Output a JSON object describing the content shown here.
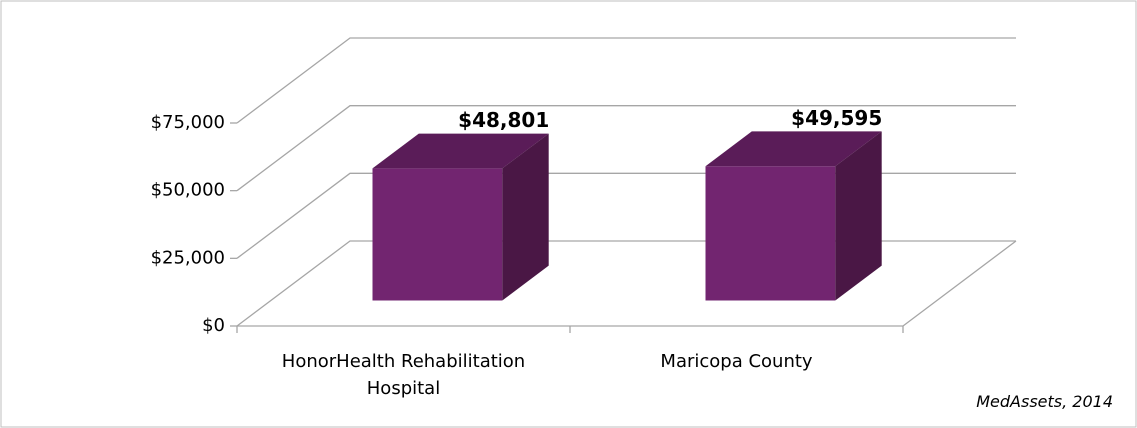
{
  "chart_data": {
    "type": "bar",
    "categories": [
      "HonorHealth Rehabilitation Hospital",
      "Maricopa County"
    ],
    "values": [
      48801,
      49595
    ],
    "value_labels": [
      "$48,801",
      "$49,595"
    ],
    "color": "#722570",
    "ylim": [
      0,
      75000
    ],
    "yticks": [
      {
        "value": 0,
        "label": "$0"
      },
      {
        "value": 25000,
        "label": "$25,000"
      },
      {
        "value": 50000,
        "label": "$50,000"
      },
      {
        "value": 75000,
        "label": "$75,000"
      }
    ],
    "grid": true,
    "source": "MedAssets, 2014"
  }
}
